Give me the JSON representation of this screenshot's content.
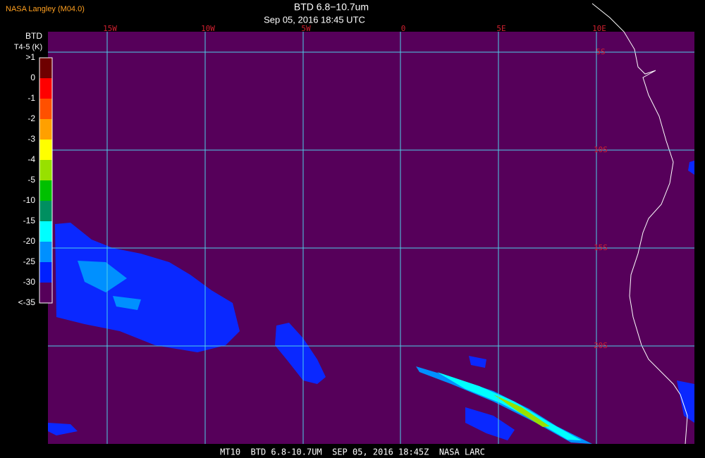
{
  "header": {
    "source": "NASA Langley (M04.0)",
    "title": "BTD 6.8−10.7um",
    "subtitle": "Sep 05, 2016 18:45 UTC"
  },
  "legend": {
    "title": "BTD",
    "units": "T4-5 (K)",
    "labels": [
      ">1",
      "0",
      "-1",
      "-2",
      "-3",
      "-4",
      "-5",
      "-10",
      "-15",
      "-20",
      "-25",
      "-30",
      "<-35"
    ],
    "colors": [
      "#6e0000",
      "#ff0000",
      "#ff5000",
      "#ffa000",
      "#ffff00",
      "#98e000",
      "#00c000",
      "#008f60",
      "#00ffff",
      "#0090ff",
      "#0020ff",
      "#56005a"
    ]
  },
  "map": {
    "longitude_labels": [
      "15W",
      "10W",
      "5W",
      "0",
      "5E",
      "10E"
    ],
    "latitude_labels": [
      "5S",
      "10S",
      "15S",
      "20S"
    ]
  },
  "footer": "MT10  BTD 6.8-10.7UM  SEP 05, 2016 18:45Z  NASA LARC"
}
